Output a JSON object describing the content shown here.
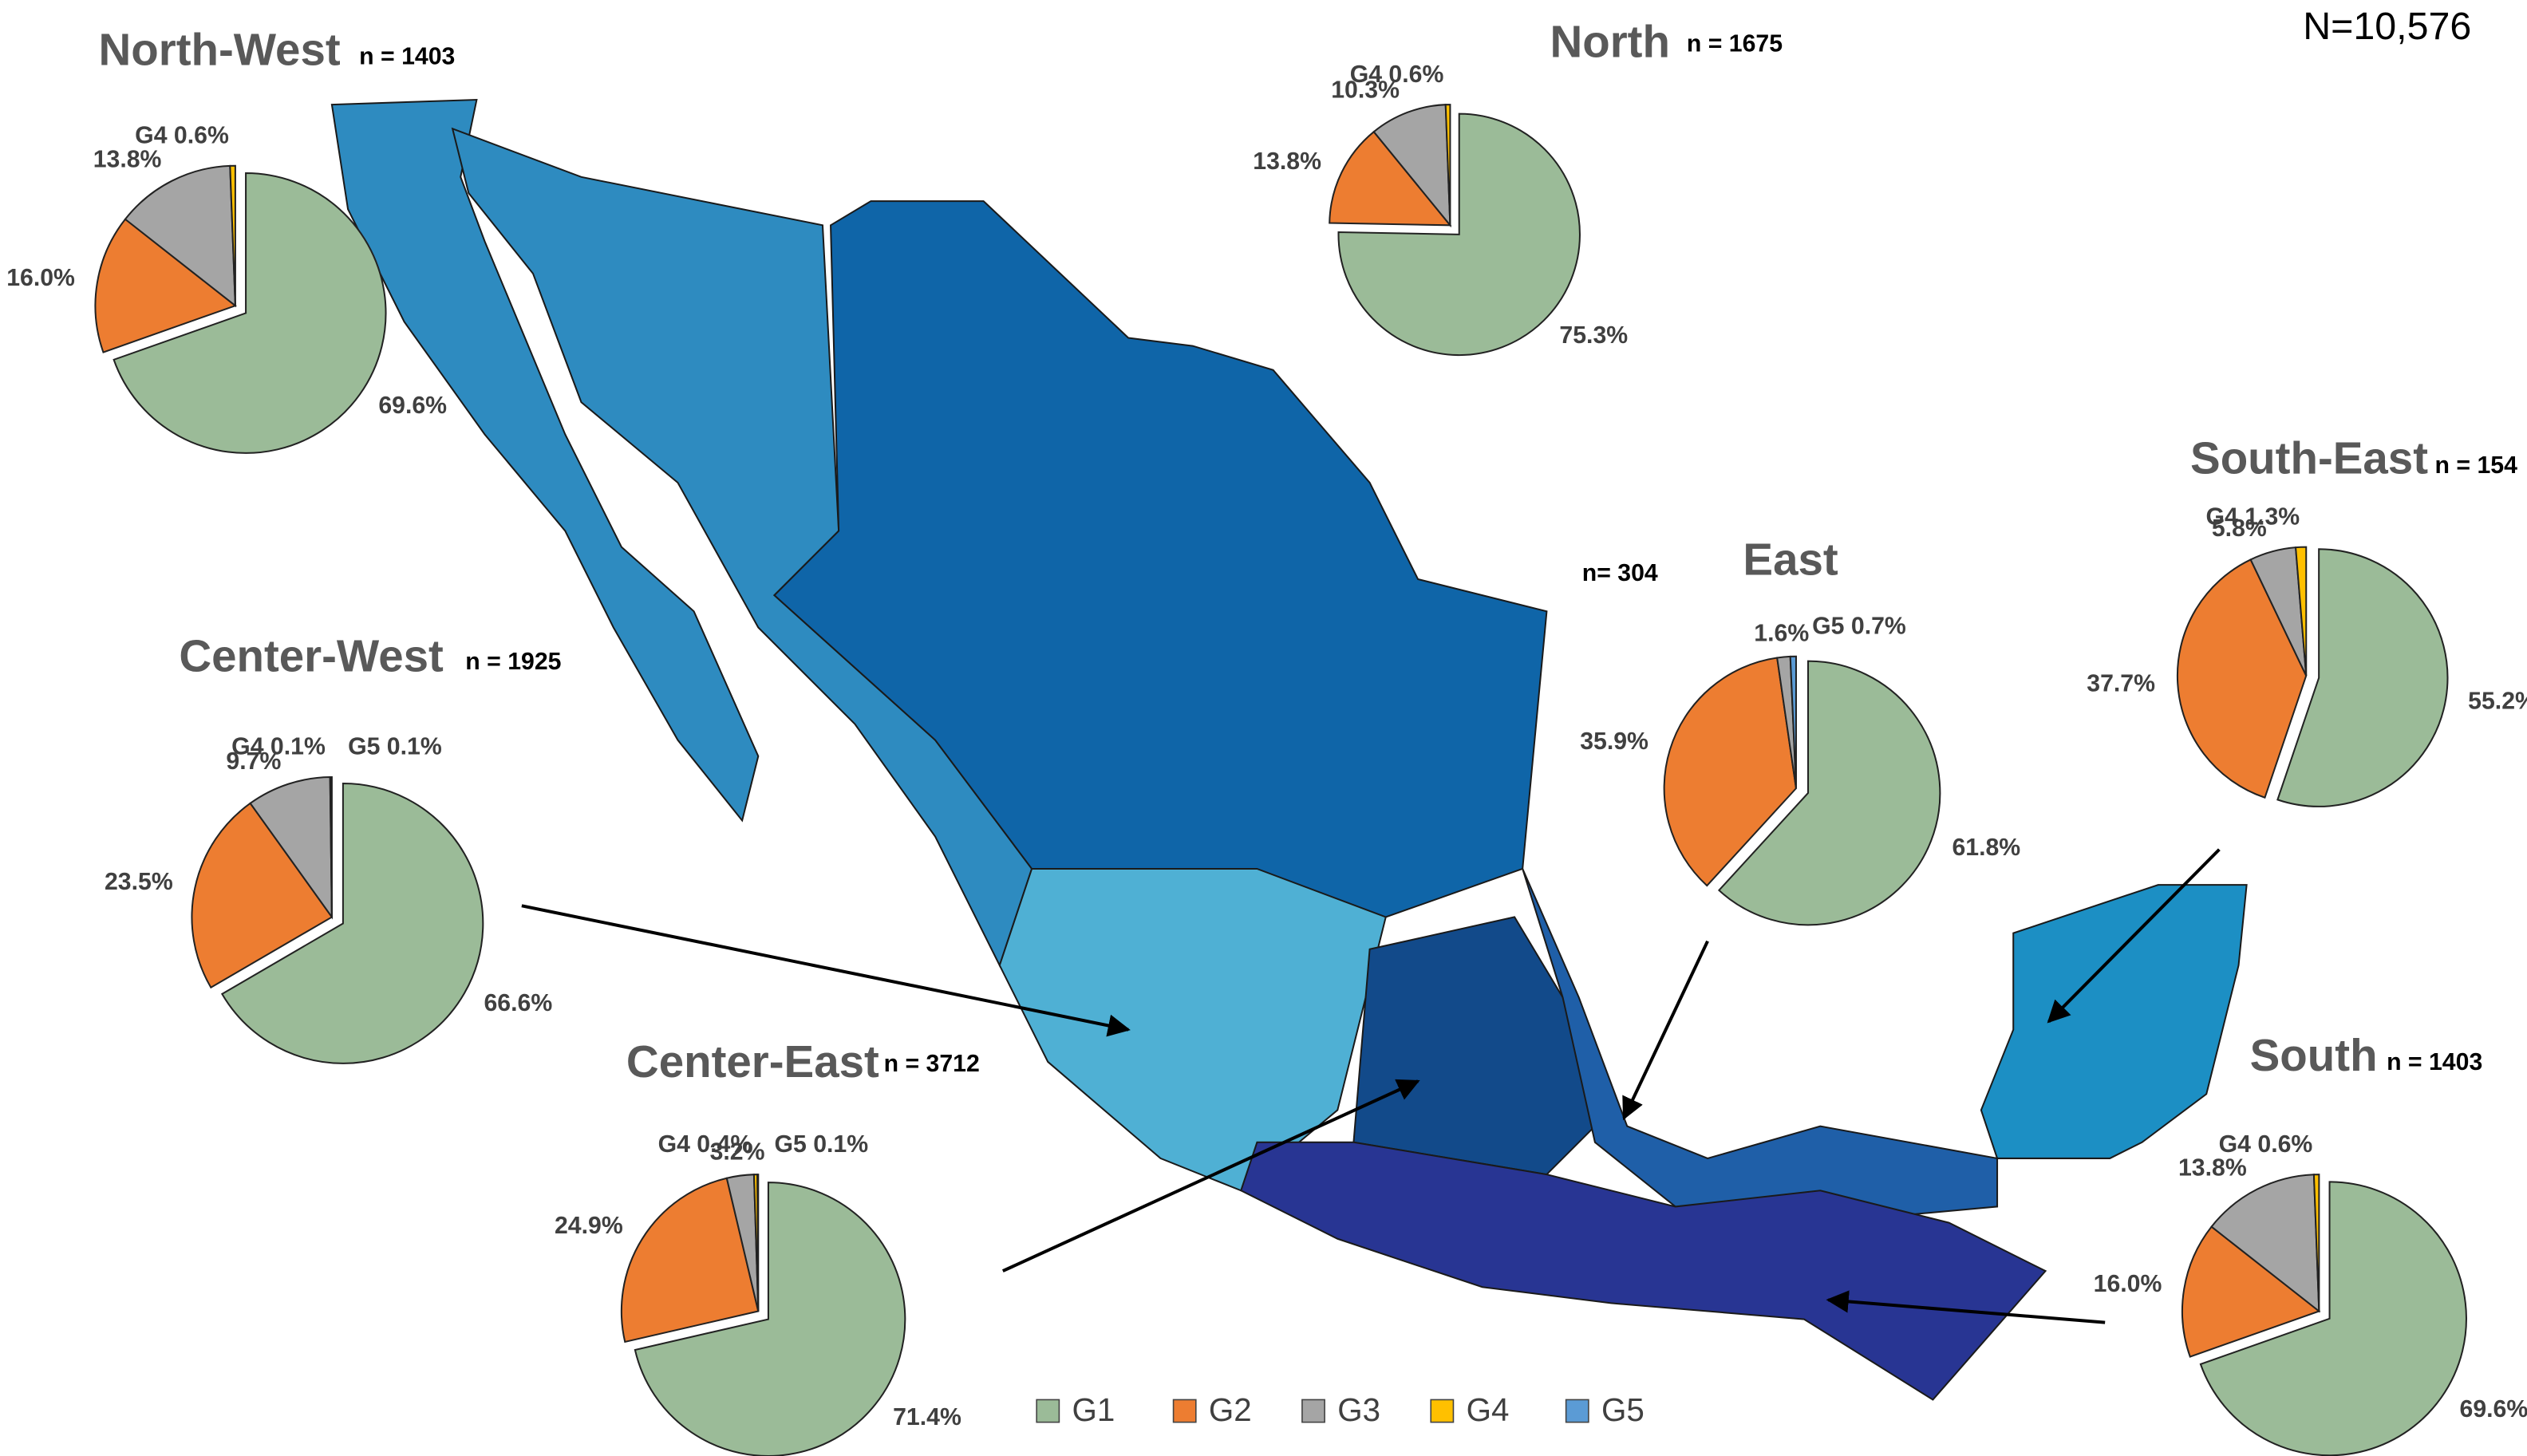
{
  "header": {
    "total": "N=10,576"
  },
  "legend": [
    {
      "name": "G1",
      "color": "#9bbb98"
    },
    {
      "name": "G2",
      "color": "#ed7d31"
    },
    {
      "name": "G3",
      "color": "#a5a5a5"
    },
    {
      "name": "G4",
      "color": "#ffc000"
    },
    {
      "name": "G5",
      "color": "#5b9bd5"
    }
  ],
  "chart_data": [
    {
      "type": "pie",
      "title": "North-West",
      "subtitle": "n = 1403",
      "values": [
        69.6,
        16.0,
        13.8,
        0.6
      ],
      "value_labels": [
        "69.6%",
        "16.0%",
        "13.8%",
        "G4 0.6%"
      ]
    },
    {
      "type": "pie",
      "title": "North",
      "subtitle": "n = 1675",
      "values": [
        75.3,
        13.8,
        10.3,
        0.6
      ],
      "value_labels": [
        "75.3%",
        "13.8%",
        "10.3%",
        "G4 0.6%"
      ]
    },
    {
      "type": "pie",
      "title": "Center-West",
      "subtitle": "n = 1925",
      "values": [
        66.6,
        23.5,
        9.7,
        0.1,
        0.1
      ],
      "value_labels": [
        "66.6%",
        "23.5%",
        "9.7%",
        "G4 0.1%",
        "G5 0.1%"
      ]
    },
    {
      "type": "pie",
      "title": "Center-East",
      "subtitle": "n = 3712",
      "values": [
        71.4,
        24.9,
        3.2,
        0.4,
        0.1
      ],
      "value_labels": [
        "71.4%",
        "24.9%",
        "3.2%",
        "G4 0.4%",
        "G5 0.1%"
      ]
    },
    {
      "type": "pie",
      "title": "East",
      "subtitle": "n= 304",
      "values": [
        61.8,
        35.9,
        1.6,
        null,
        0.7
      ],
      "value_labels": [
        "61.8%",
        "35.9%",
        "1.6%",
        null,
        "G5 0.7%"
      ]
    },
    {
      "type": "pie",
      "title": "South-East",
      "subtitle": "n = 154",
      "values": [
        55.2,
        37.7,
        5.8,
        1.3
      ],
      "value_labels": [
        "55.2%",
        "37.7%",
        "5.8%",
        "G4 1.3%"
      ]
    },
    {
      "type": "pie",
      "title": "South",
      "subtitle": "n = 1403",
      "values": [
        69.6,
        16.0,
        13.8,
        0.6
      ],
      "value_labels": [
        "69.6%",
        "16.0%",
        "13.8%",
        "G4 0.6%"
      ]
    }
  ]
}
